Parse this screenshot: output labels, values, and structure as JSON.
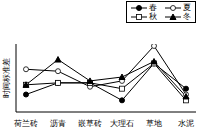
{
  "chart_data": {
    "type": "line",
    "y_label": "时间标准差",
    "categories": [
      "荷兰砖",
      "沥青",
      "嵌草砖",
      "大理石",
      "草地",
      "水泥"
    ],
    "series": [
      {
        "name": "春",
        "color": "#000000",
        "marker": "circle",
        "line_style": "solid",
        "values": [
          0.9,
          1.5,
          1.5,
          0.6,
          2.5,
          1.2
        ]
      },
      {
        "name": "夏",
        "color": "#000000",
        "marker": "circle_open",
        "line_style": "solid",
        "values": [
          2.2,
          2.1,
          1.3,
          1.6,
          3.4,
          0.9
        ]
      },
      {
        "name": "秋",
        "color": "#000000",
        "marker": "square_open",
        "line_style": "solid",
        "values": [
          1.4,
          1.5,
          1.5,
          1.2,
          2.5,
          0.6
        ]
      },
      {
        "name": "冬",
        "color": "#000000",
        "marker": "triangle",
        "line_style": "solid",
        "values": [
          1.4,
          2.7,
          1.6,
          1.8,
          2.6,
          0.8
        ]
      }
    ],
    "ylim": [
      0,
      3.5
    ],
    "tick_labels": "x",
    "grid": false,
    "legend": "top-right"
  }
}
